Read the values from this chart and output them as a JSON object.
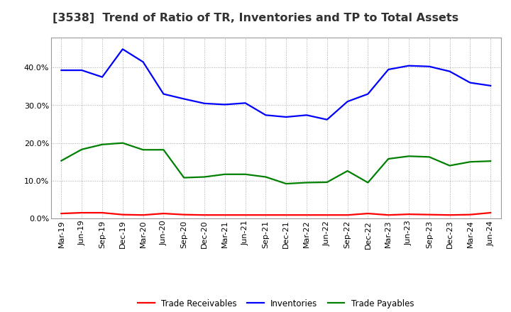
{
  "title": "[3538]  Trend of Ratio of TR, Inventories and TP to Total Assets",
  "labels": [
    "Mar-19",
    "Jun-19",
    "Sep-19",
    "Dec-19",
    "Mar-20",
    "Jun-20",
    "Sep-20",
    "Dec-20",
    "Mar-21",
    "Jun-21",
    "Sep-21",
    "Dec-21",
    "Mar-22",
    "Jun-22",
    "Sep-22",
    "Dec-22",
    "Mar-23",
    "Jun-23",
    "Sep-23",
    "Dec-23",
    "Mar-24",
    "Jun-24"
  ],
  "trade_receivables": [
    0.013,
    0.015,
    0.015,
    0.01,
    0.009,
    0.013,
    0.01,
    0.009,
    0.009,
    0.009,
    0.009,
    0.009,
    0.009,
    0.009,
    0.009,
    0.013,
    0.009,
    0.011,
    0.01,
    0.009,
    0.01,
    0.015
  ],
  "inventories": [
    0.393,
    0.393,
    0.375,
    0.449,
    0.415,
    0.33,
    0.317,
    0.305,
    0.302,
    0.306,
    0.274,
    0.269,
    0.274,
    0.262,
    0.31,
    0.33,
    0.395,
    0.405,
    0.403,
    0.39,
    0.36,
    0.352
  ],
  "trade_payables": [
    0.153,
    0.183,
    0.196,
    0.2,
    0.182,
    0.182,
    0.108,
    0.11,
    0.117,
    0.117,
    0.11,
    0.092,
    0.095,
    0.096,
    0.126,
    0.095,
    0.158,
    0.165,
    0.163,
    0.14,
    0.15,
    0.152
  ],
  "tr_color": "#ff0000",
  "inv_color": "#0000ff",
  "tp_color": "#008000",
  "ylim": [
    0.0,
    0.48
  ],
  "yticks": [
    0.0,
    0.1,
    0.2,
    0.3,
    0.4
  ],
  "legend_labels": [
    "Trade Receivables",
    "Inventories",
    "Trade Payables"
  ],
  "background_color": "#ffffff",
  "plot_bg_color": "#ffffff",
  "grid_color": "#aaaaaa",
  "title_fontsize": 11.5,
  "tick_fontsize": 8,
  "legend_fontsize": 8.5,
  "line_width": 1.6
}
